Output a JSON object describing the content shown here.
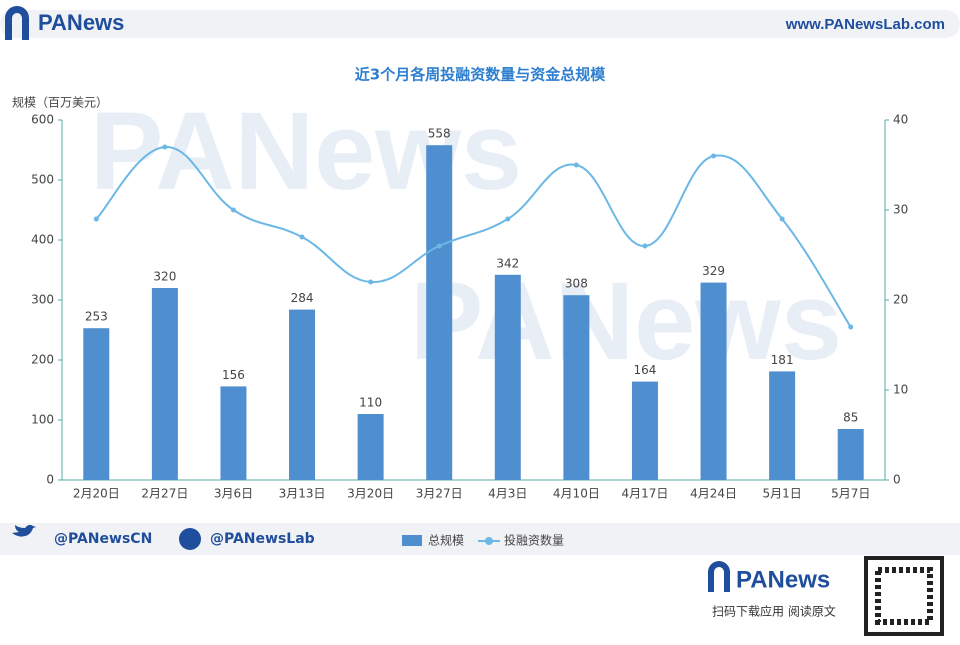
{
  "header": {
    "logo": "PANews",
    "url": "www.PANewsLab.com"
  },
  "footer": {
    "twitter": "@PANewsCN",
    "facebook": "@PANewsLab",
    "logo": "PANews",
    "qr_caption": "扫码下载应用  阅读原文"
  },
  "chart_data": {
    "type": "bar-line",
    "title": "近3个月各周投融资数量与资金总规模",
    "y_label": "规模（百万美元）",
    "categories": [
      "2月20日",
      "2月27日",
      "3月6日",
      "3月13日",
      "3月20日",
      "3月27日",
      "4月3日",
      "4月10日",
      "4月17日",
      "4月24日",
      "5月1日",
      "5月7日"
    ],
    "series": [
      {
        "name": "总规模",
        "type": "bar",
        "color": "#4f8fd0",
        "values": [
          253,
          320,
          156,
          284,
          110,
          558,
          342,
          308,
          164,
          329,
          181,
          85
        ]
      },
      {
        "name": "投融资数量",
        "type": "line",
        "axis": "y2",
        "color": "#6bb8e6",
        "values": [
          29,
          37,
          30,
          27,
          22,
          26,
          29,
          35,
          26,
          36,
          29,
          17
        ]
      }
    ],
    "ylim": [
      0,
      600
    ],
    "yticks": [
      0,
      100,
      200,
      300,
      400,
      500,
      600
    ],
    "y2lim": [
      0,
      40
    ],
    "y2ticks": [
      0,
      10,
      20,
      30,
      40
    ]
  }
}
